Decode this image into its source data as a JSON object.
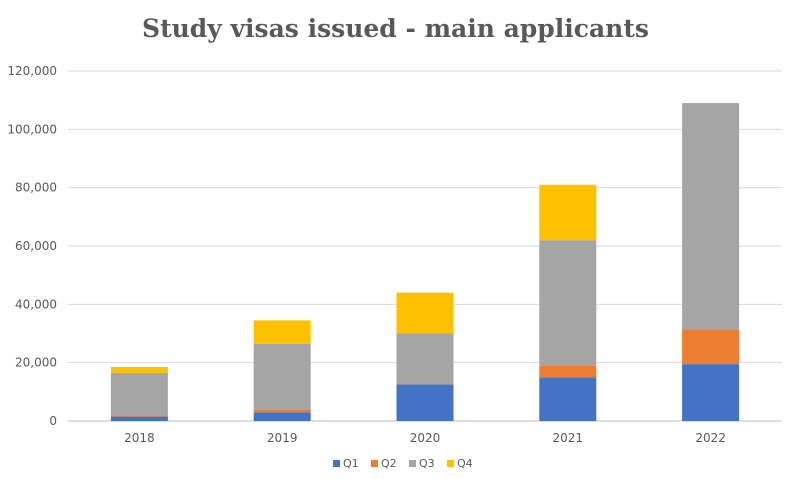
{
  "chart_data": {
    "type": "bar",
    "stacked": true,
    "title": "Study visas issued - main applicants",
    "xlabel": "",
    "ylabel": "",
    "categories": [
      "2018",
      "2019",
      "2020",
      "2021",
      "2022"
    ],
    "series": [
      {
        "name": "Q1",
        "color": "#4472C4",
        "values": [
          1500,
          3000,
          12500,
          15000,
          19500
        ]
      },
      {
        "name": "Q2",
        "color": "#ED7D31",
        "values": [
          500,
          1000,
          0,
          4000,
          12000
        ]
      },
      {
        "name": "Q3",
        "color": "#A5A5A5",
        "values": [
          14500,
          22500,
          17500,
          43000,
          77500
        ]
      },
      {
        "name": "Q4",
        "color": "#FFC000",
        "values": [
          2000,
          8000,
          14000,
          19000,
          0
        ]
      }
    ],
    "ylim": [
      0,
      120000
    ],
    "yticks": [
      0,
      20000,
      40000,
      60000,
      80000,
      100000,
      120000
    ],
    "ytick_labels": [
      "0",
      "20,000",
      "40,000",
      "60,000",
      "80,000",
      "100,000",
      "120,000"
    ],
    "grid": true,
    "legend_position": "bottom"
  }
}
